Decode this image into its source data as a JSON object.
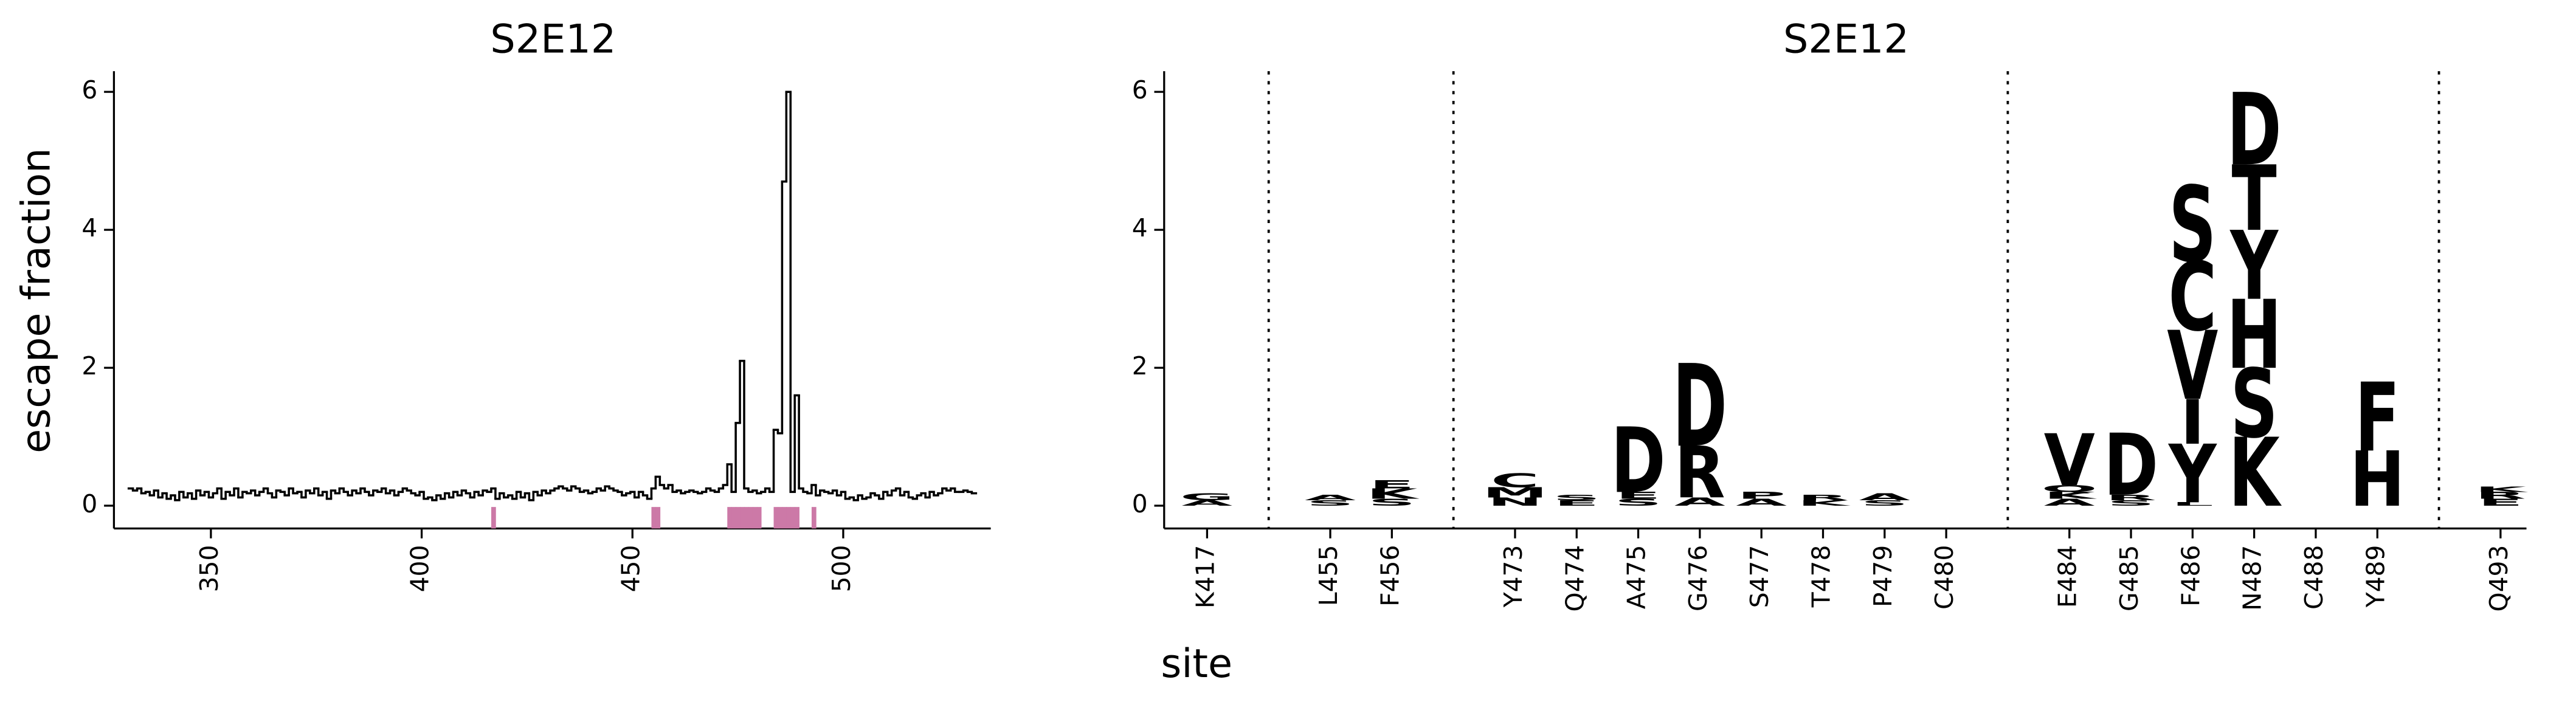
{
  "chart_data": [
    {
      "type": "step",
      "title": "S2E12",
      "y_label": "escape fraction",
      "color": "#000000",
      "highlight_color": "#cc79a7",
      "x": [
        331,
        332,
        333,
        334,
        335,
        336,
        337,
        338,
        339,
        340,
        341,
        342,
        343,
        344,
        345,
        346,
        347,
        348,
        349,
        350,
        351,
        352,
        353,
        354,
        355,
        356,
        357,
        358,
        359,
        360,
        361,
        362,
        363,
        364,
        365,
        366,
        367,
        368,
        369,
        370,
        371,
        372,
        373,
        374,
        375,
        376,
        377,
        378,
        379,
        380,
        381,
        382,
        383,
        384,
        385,
        386,
        387,
        388,
        389,
        390,
        391,
        392,
        393,
        394,
        395,
        396,
        397,
        398,
        399,
        400,
        401,
        402,
        403,
        404,
        405,
        406,
        407,
        408,
        409,
        410,
        411,
        412,
        413,
        414,
        415,
        416,
        417,
        418,
        419,
        420,
        421,
        422,
        423,
        424,
        425,
        426,
        427,
        428,
        429,
        430,
        431,
        432,
        433,
        434,
        435,
        436,
        437,
        438,
        439,
        440,
        441,
        442,
        443,
        444,
        445,
        446,
        447,
        448,
        449,
        450,
        451,
        452,
        453,
        454,
        455,
        456,
        457,
        458,
        459,
        460,
        461,
        462,
        463,
        464,
        465,
        466,
        467,
        468,
        469,
        470,
        471,
        472,
        473,
        474,
        475,
        476,
        477,
        478,
        479,
        480,
        481,
        482,
        483,
        484,
        485,
        486,
        487,
        488,
        489,
        490,
        491,
        492,
        493,
        494,
        495,
        496,
        497,
        498,
        499,
        500,
        501,
        502,
        503,
        504,
        505,
        506,
        507,
        508,
        509,
        510,
        511,
        512,
        513,
        514,
        515,
        516,
        517,
        518,
        519,
        520,
        521,
        522,
        523,
        524,
        525,
        526,
        527,
        528,
        529,
        530,
        531
      ],
      "values": [
        0.25,
        0.22,
        0.25,
        0.18,
        0.2,
        0.15,
        0.22,
        0.12,
        0.18,
        0.1,
        0.15,
        0.08,
        0.2,
        0.12,
        0.18,
        0.1,
        0.22,
        0.15,
        0.2,
        0.12,
        0.18,
        0.25,
        0.1,
        0.2,
        0.15,
        0.25,
        0.12,
        0.2,
        0.18,
        0.22,
        0.15,
        0.2,
        0.25,
        0.18,
        0.12,
        0.22,
        0.2,
        0.15,
        0.25,
        0.18,
        0.2,
        0.12,
        0.22,
        0.18,
        0.25,
        0.15,
        0.2,
        0.1,
        0.22,
        0.18,
        0.25,
        0.2,
        0.15,
        0.22,
        0.18,
        0.25,
        0.2,
        0.15,
        0.22,
        0.2,
        0.25,
        0.18,
        0.22,
        0.15,
        0.2,
        0.25,
        0.22,
        0.18,
        0.15,
        0.2,
        0.1,
        0.12,
        0.08,
        0.15,
        0.1,
        0.18,
        0.12,
        0.2,
        0.15,
        0.22,
        0.18,
        0.12,
        0.2,
        0.15,
        0.22,
        0.2,
        0.25,
        0.1,
        0.18,
        0.12,
        0.15,
        0.1,
        0.2,
        0.12,
        0.18,
        0.08,
        0.2,
        0.15,
        0.22,
        0.18,
        0.22,
        0.25,
        0.28,
        0.25,
        0.22,
        0.28,
        0.25,
        0.2,
        0.22,
        0.18,
        0.2,
        0.25,
        0.22,
        0.28,
        0.25,
        0.22,
        0.2,
        0.15,
        0.18,
        0.2,
        0.12,
        0.2,
        0.15,
        0.1,
        0.25,
        0.42,
        0.3,
        0.25,
        0.3,
        0.2,
        0.22,
        0.18,
        0.2,
        0.22,
        0.2,
        0.18,
        0.2,
        0.25,
        0.22,
        0.2,
        0.25,
        0.3,
        0.6,
        0.2,
        1.2,
        2.1,
        0.25,
        0.2,
        0.22,
        0.18,
        0.2,
        0.25,
        0.2,
        1.1,
        1.05,
        4.7,
        6.0,
        0.2,
        1.6,
        0.25,
        0.2,
        0.18,
        0.3,
        0.15,
        0.22,
        0.2,
        0.18,
        0.22,
        0.15,
        0.2,
        0.1,
        0.12,
        0.08,
        0.15,
        0.1,
        0.12,
        0.18,
        0.15,
        0.1,
        0.2,
        0.15,
        0.22,
        0.25,
        0.15,
        0.2,
        0.12,
        0.1,
        0.15,
        0.18,
        0.12,
        0.2,
        0.15,
        0.18,
        0.25,
        0.22,
        0.25,
        0.2,
        0.2,
        0.22,
        0.2,
        0.18
      ],
      "highlight_sites": [
        417,
        455,
        456,
        473,
        474,
        475,
        476,
        477,
        478,
        479,
        480,
        484,
        485,
        486,
        487,
        488,
        489,
        493
      ],
      "xlim": [
        327,
        535
      ],
      "xticks": [
        350,
        400,
        450,
        500
      ],
      "ylim": [
        -0.33,
        6.3
      ],
      "yticks": [
        0,
        2,
        4,
        6
      ]
    },
    {
      "type": "logo",
      "title": "S2E12",
      "x_label": "site",
      "ylim": [
        -0.33,
        6.3
      ],
      "yticks": [
        0,
        2,
        4,
        6
      ],
      "groups": [
        {
          "sites": [
            {
              "label": "K417",
              "letters": [
                {
                  "letter": "A",
                  "value": 0.08,
                  "color": "#e6c3a5"
                },
                {
                  "letter": "G",
                  "value": 0.1,
                  "color": "#c8967a"
                }
              ]
            }
          ]
        },
        {
          "sites": [
            {
              "label": "L455",
              "letters": [
                {
                  "letter": "S",
                  "value": 0.08,
                  "color": "#d9ad8f"
                },
                {
                  "letter": "A",
                  "value": 0.08,
                  "color": "#c8967a"
                }
              ]
            },
            {
              "label": "F456",
              "letters": [
                {
                  "letter": "S",
                  "value": 0.1,
                  "color": "#d9ad8f"
                },
                {
                  "letter": "K",
                  "value": 0.15,
                  "color": "#c06a3c"
                },
                {
                  "letter": "E",
                  "value": 0.12,
                  "color": "#9c3d10"
                }
              ]
            }
          ]
        },
        {
          "sites": [
            {
              "label": "Y473",
              "letters": [
                {
                  "letter": "N",
                  "value": 0.12,
                  "color": "#fde3a7"
                },
                {
                  "letter": "M",
                  "value": 0.15,
                  "color": "#fcd98f"
                },
                {
                  "letter": "C",
                  "value": 0.2,
                  "color": "#fde8b8"
                }
              ]
            },
            {
              "label": "Q474",
              "letters": [
                {
                  "letter": "E",
                  "value": 0.08,
                  "color": "#f2c48b"
                },
                {
                  "letter": "S",
                  "value": 0.08,
                  "color": "#e9b07a"
                }
              ]
            },
            {
              "label": "A475",
              "letters": [
                {
                  "letter": "S",
                  "value": 0.1,
                  "color": "#d9ad8f"
                },
                {
                  "letter": "E",
                  "value": 0.1,
                  "color": "#9c3d10"
                },
                {
                  "letter": "D",
                  "value": 0.95,
                  "color": "#c0450c"
                }
              ]
            },
            {
              "label": "G476",
              "letters": [
                {
                  "letter": "A",
                  "value": 0.12,
                  "color": "#c8967a"
                },
                {
                  "letter": "R",
                  "value": 0.75,
                  "color": "#fcd27b"
                },
                {
                  "letter": "D",
                  "value": 1.2,
                  "color": "#b0400b"
                }
              ]
            },
            {
              "label": "S477",
              "letters": [
                {
                  "letter": "A",
                  "value": 0.1,
                  "color": "#d9ad8f"
                },
                {
                  "letter": "P",
                  "value": 0.1,
                  "color": "#c8967a"
                }
              ]
            },
            {
              "label": "T478",
              "letters": [
                {
                  "letter": "K",
                  "value": 0.08,
                  "color": "#d9ad8f"
                },
                {
                  "letter": "R",
                  "value": 0.08,
                  "color": "#c8967a"
                }
              ]
            },
            {
              "label": "P479",
              "letters": [
                {
                  "letter": "S",
                  "value": 0.08,
                  "color": "#d9ad8f"
                },
                {
                  "letter": "A",
                  "value": 0.1,
                  "color": "#c8967a"
                }
              ]
            },
            {
              "label": "C480",
              "letters": []
            }
          ]
        },
        {
          "sites": [
            {
              "label": "E484",
              "letters": [
                {
                  "letter": "A",
                  "value": 0.1,
                  "color": "#d9ad8f"
                },
                {
                  "letter": "K",
                  "value": 0.1,
                  "color": "#9c3d10"
                },
                {
                  "letter": "Q",
                  "value": 0.1,
                  "color": "#6b2a0b"
                },
                {
                  "letter": "V",
                  "value": 0.75,
                  "color": "#6b2a0b"
                }
              ]
            },
            {
              "label": "G485",
              "letters": [
                {
                  "letter": "S",
                  "value": 0.08,
                  "color": "#d9ad8f"
                },
                {
                  "letter": "R",
                  "value": 0.08,
                  "color": "#c8967a"
                },
                {
                  "letter": "D",
                  "value": 0.9,
                  "color": "#b5460e"
                }
              ]
            },
            {
              "label": "F486",
              "letters": [
                {
                  "letter": "L",
                  "value": 0.05,
                  "color": "#5c2409"
                },
                {
                  "letter": "Y",
                  "value": 0.85,
                  "color": "#6b2a0b"
                },
                {
                  "letter": "I",
                  "value": 0.65,
                  "color": "#5a2208"
                },
                {
                  "letter": "V",
                  "value": 1.0,
                  "color": "#6e2a0a"
                },
                {
                  "letter": "C",
                  "value": 1.0,
                  "color": "#7a300c"
                },
                {
                  "letter": "S",
                  "value": 1.1,
                  "color": "#5c2409"
                }
              ]
            },
            {
              "label": "N487",
              "letters": [
                {
                  "letter": "K",
                  "value": 1.0,
                  "color": "#6b2a0b"
                },
                {
                  "letter": "S",
                  "value": 1.0,
                  "color": "#b5460e"
                },
                {
                  "letter": "H",
                  "value": 1.0,
                  "color": "#cc5510"
                },
                {
                  "letter": "Y",
                  "value": 1.0,
                  "color": "#fbb040"
                },
                {
                  "letter": "T",
                  "value": 0.95,
                  "color": "#d2560f"
                },
                {
                  "letter": "D",
                  "value": 1.05,
                  "color": "#5c2409"
                }
              ]
            },
            {
              "label": "C488",
              "letters": []
            },
            {
              "label": "Y489",
              "letters": [
                {
                  "letter": "H",
                  "value": 0.8,
                  "color": "#5c2409"
                },
                {
                  "letter": "F",
                  "value": 1.0,
                  "color": "#8a340c"
                }
              ]
            }
          ]
        },
        {
          "sites": [
            {
              "label": "Q493",
              "letters": [
                {
                  "letter": "E",
                  "value": 0.1,
                  "color": "#d9ad8f"
                },
                {
                  "letter": "R",
                  "value": 0.1,
                  "color": "#9c3d10"
                },
                {
                  "letter": "K",
                  "value": 0.08,
                  "color": "#6b2a0b"
                }
              ]
            }
          ]
        }
      ]
    }
  ]
}
